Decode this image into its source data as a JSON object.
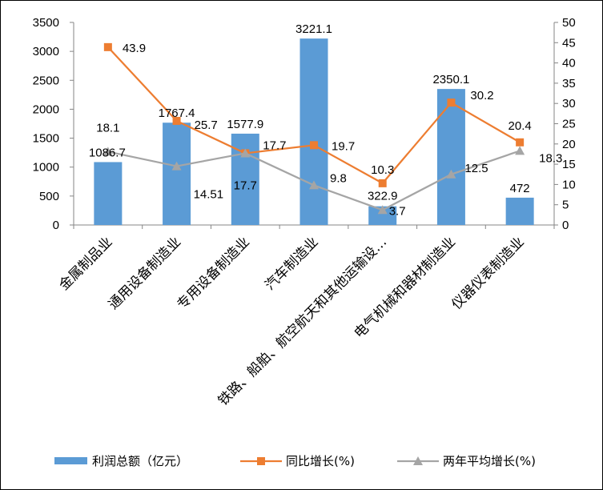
{
  "chart_data": {
    "type": "bar+line",
    "categories": [
      "金属制品业",
      "通用设备制造业",
      "专用设备制造业",
      "汽车制造业",
      "铁路、船舶、航空航天和其他运输设…",
      "电气机械和器材制造业",
      "仪器仪表制造业"
    ],
    "series": [
      {
        "name": "利润总额（亿元）",
        "type": "bar",
        "axis": "left",
        "color": "#5B9BD5",
        "values": [
          1086.7,
          1767.4,
          1577.9,
          3221.1,
          322.9,
          2350.1,
          472
        ],
        "labels": [
          "1086.7",
          "1767.4",
          "1577.9",
          "3221.1",
          "322.9",
          "2350.1",
          "472"
        ]
      },
      {
        "name": "同比增长(%)",
        "type": "line",
        "axis": "right",
        "color": "#ED7D31",
        "marker": "square",
        "values": [
          43.9,
          25.7,
          17.7,
          19.7,
          10.3,
          30.2,
          20.4
        ],
        "labels": [
          "43.9",
          "25.7",
          "17.7",
          "19.7",
          "10.3",
          "30.2",
          "20.4"
        ]
      },
      {
        "name": "两年平均增长(%)",
        "type": "line",
        "axis": "right",
        "color": "#A5A5A5",
        "marker": "triangle",
        "values": [
          18.1,
          14.51,
          17.7,
          9.8,
          3.7,
          12.5,
          18.3
        ],
        "labels": [
          "18.1",
          "14.51",
          "17.7",
          "9.8",
          "3.7",
          "12.5",
          "18.3"
        ]
      }
    ],
    "y_left": {
      "min": 0,
      "max": 3500,
      "step": 500
    },
    "y_right": {
      "min": 0,
      "max": 50,
      "step": 5
    },
    "grid": false,
    "legend": "bottom"
  }
}
